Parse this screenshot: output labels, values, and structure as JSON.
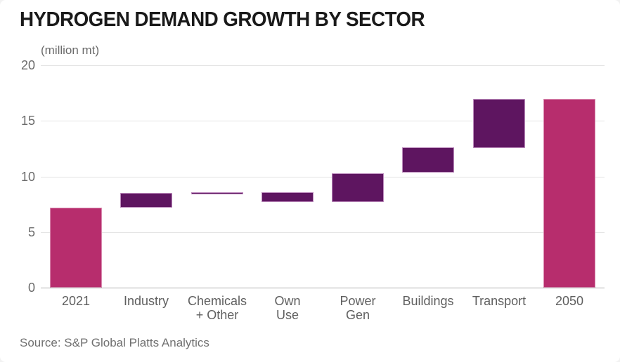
{
  "title": "HYDROGEN DEMAND GROWTH BY SECTOR",
  "units_label": "(million mt)",
  "source": "Source: S&P Global Platts Analytics",
  "colors": {
    "pink": "#B72D6D",
    "purple": "#5E1560",
    "pink_border": "#d98bb0",
    "purple_border": "#bd8cbd",
    "gridline": "#e4e4e4",
    "zero_line": "#aeaeae",
    "axis_text": "#6b6b6b",
    "category_text": "#5f5f5f",
    "title_text": "#1a1a1a",
    "source_text": "#707070"
  },
  "chart_data": {
    "type": "bar",
    "subtype": "waterfall",
    "title": "HYDROGEN DEMAND GROWTH BY SECTOR",
    "xlabel": "",
    "ylabel": "(million mt)",
    "ylim": [
      0,
      20
    ],
    "yticks": [
      0,
      5,
      10,
      15,
      20
    ],
    "grid": true,
    "legend": false,
    "categories": [
      "2021",
      "Industry",
      "Chemicals + Other",
      "Own Use",
      "Power Gen",
      "Buildings",
      "Transport",
      "2050"
    ],
    "bars": [
      {
        "label": "2021",
        "display_label": "2021",
        "from": 0,
        "to": 7.2,
        "change": 7.2,
        "kind": "total",
        "color_key": "pink"
      },
      {
        "label": "Industry",
        "display_label": "Industry",
        "from": 7.2,
        "to": 8.5,
        "change": 1.3,
        "kind": "increase",
        "color_key": "purple"
      },
      {
        "label": "Chemicals + Other",
        "display_label": "Chemicals\n+ Other",
        "from": 8.5,
        "to": 8.6,
        "change": 0.1,
        "kind": "increase",
        "color_key": "purple"
      },
      {
        "label": "Own Use",
        "display_label": "Own\nUse",
        "from": 8.6,
        "to": 7.7,
        "change": -0.9,
        "kind": "decrease",
        "color_key": "purple"
      },
      {
        "label": "Power Gen",
        "display_label": "Power\nGen",
        "from": 7.7,
        "to": 10.3,
        "change": 2.6,
        "kind": "increase",
        "color_key": "purple"
      },
      {
        "label": "Buildings",
        "display_label": "Buildings",
        "from": 10.3,
        "to": 12.6,
        "change": 2.3,
        "kind": "increase",
        "color_key": "purple"
      },
      {
        "label": "Transport",
        "display_label": "Transport",
        "from": 12.6,
        "to": 17.0,
        "change": 4.4,
        "kind": "increase",
        "color_key": "purple"
      },
      {
        "label": "2050",
        "display_label": "2050",
        "from": 0,
        "to": 17.0,
        "change": 17.0,
        "kind": "total",
        "color_key": "pink"
      }
    ]
  }
}
